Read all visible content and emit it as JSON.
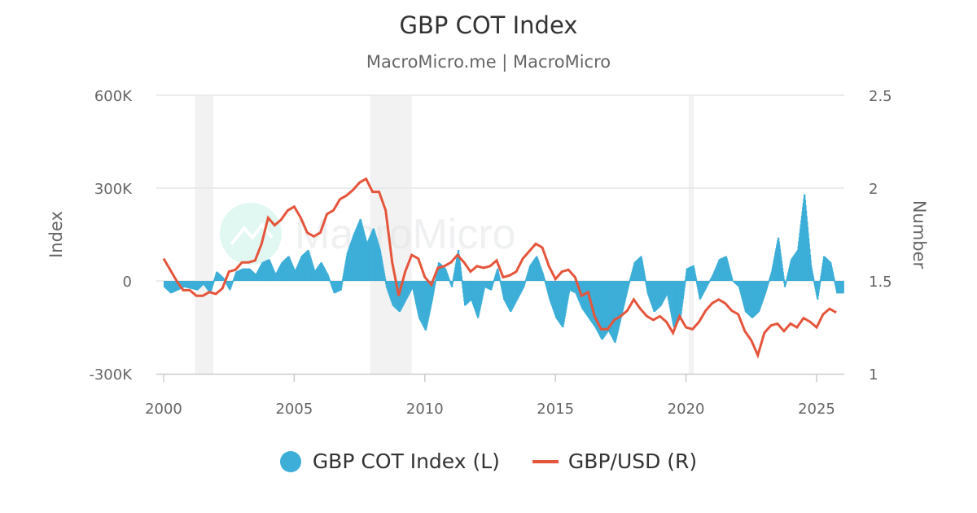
{
  "title": "GBP COT Index",
  "subtitle": "MacroMicro.me | MacroMicro",
  "watermark": "MacroMicro",
  "chart_data": {
    "type": "bar+line",
    "x_axis": {
      "ticks": [
        "2000",
        "2005",
        "2010",
        "2015",
        "2020",
        "2025"
      ],
      "range": [
        1999.72,
        2026.06
      ]
    },
    "y_left": {
      "label": "Index",
      "range": [
        -300000,
        600000
      ],
      "ticks": [
        "-300K",
        "0",
        "300K",
        "600K"
      ],
      "tick_values": [
        -300000,
        0,
        300000,
        600000
      ]
    },
    "y_right": {
      "label": "Number",
      "range": [
        1,
        2.5
      ],
      "ticks": [
        "1",
        "1.5",
        "2",
        "2.5"
      ],
      "tick_values": [
        1,
        1.5,
        2,
        2.5
      ]
    },
    "grid": true,
    "legend_position": "bottom",
    "recession_shading": [
      [
        2001.2,
        2001.9
      ],
      [
        2007.9,
        2009.5
      ],
      [
        2020.1,
        2020.3
      ]
    ],
    "x": [
      2000,
      2000.25,
      2000.5,
      2000.75,
      2001,
      2001.25,
      2001.5,
      2001.75,
      2002,
      2002.25,
      2002.5,
      2002.75,
      2003,
      2003.25,
      2003.5,
      2003.75,
      2004,
      2004.25,
      2004.5,
      2004.75,
      2005,
      2005.25,
      2005.5,
      2005.75,
      2006,
      2006.25,
      2006.5,
      2006.75,
      2007,
      2007.25,
      2007.5,
      2007.75,
      2008,
      2008.25,
      2008.5,
      2008.75,
      2009,
      2009.25,
      2009.5,
      2009.75,
      2010,
      2010.25,
      2010.5,
      2010.75,
      2011,
      2011.25,
      2011.5,
      2011.75,
      2012,
      2012.25,
      2012.5,
      2012.75,
      2013,
      2013.25,
      2013.5,
      2013.75,
      2014,
      2014.25,
      2014.5,
      2014.75,
      2015,
      2015.25,
      2015.5,
      2015.75,
      2016,
      2016.25,
      2016.5,
      2016.75,
      2017,
      2017.25,
      2017.5,
      2017.75,
      2018,
      2018.25,
      2018.5,
      2018.75,
      2019,
      2019.25,
      2019.5,
      2019.75,
      2020,
      2020.25,
      2020.5,
      2020.75,
      2021,
      2021.25,
      2021.5,
      2021.75,
      2022,
      2022.25,
      2022.5,
      2022.75,
      2023,
      2023.25,
      2023.5,
      2023.75,
      2024,
      2024.25,
      2024.5,
      2024.75,
      2025,
      2025.25,
      2025.5,
      2025.75
    ],
    "series": [
      {
        "name": "GBP COT Index (L)",
        "axis": "left",
        "type": "bar",
        "color": "#3caed8",
        "values": [
          -20000,
          -40000,
          -30000,
          -20000,
          -25000,
          -30000,
          -10000,
          -40000,
          30000,
          10000,
          -30000,
          30000,
          40000,
          40000,
          20000,
          60000,
          70000,
          20000,
          60000,
          80000,
          30000,
          80000,
          100000,
          30000,
          60000,
          20000,
          -40000,
          -30000,
          90000,
          150000,
          200000,
          120000,
          170000,
          100000,
          -20000,
          -80000,
          -100000,
          -60000,
          -20000,
          -120000,
          -160000,
          -60000,
          60000,
          40000,
          -20000,
          100000,
          -80000,
          -60000,
          -120000,
          -20000,
          -30000,
          40000,
          -60000,
          -100000,
          -60000,
          -20000,
          50000,
          80000,
          20000,
          -60000,
          -120000,
          -150000,
          -30000,
          -40000,
          -90000,
          -120000,
          -150000,
          -190000,
          -160000,
          -200000,
          -110000,
          -20000,
          60000,
          80000,
          -40000,
          -100000,
          -80000,
          -40000,
          -150000,
          -120000,
          40000,
          50000,
          -60000,
          -20000,
          20000,
          70000,
          80000,
          0,
          -20000,
          -100000,
          -120000,
          -100000,
          -40000,
          30000,
          140000,
          -20000,
          70000,
          100000,
          280000,
          50000,
          -60000,
          80000,
          60000,
          -40000
        ]
      },
      {
        "name": "GBP/USD (R)",
        "axis": "right",
        "type": "line",
        "color": "#e5553b",
        "values": [
          1.62,
          1.56,
          1.5,
          1.45,
          1.45,
          1.42,
          1.42,
          1.44,
          1.43,
          1.46,
          1.55,
          1.56,
          1.6,
          1.6,
          1.61,
          1.7,
          1.84,
          1.8,
          1.83,
          1.88,
          1.9,
          1.84,
          1.76,
          1.74,
          1.76,
          1.86,
          1.88,
          1.94,
          1.96,
          1.99,
          2.03,
          2.05,
          1.98,
          1.98,
          1.88,
          1.6,
          1.42,
          1.55,
          1.64,
          1.62,
          1.52,
          1.48,
          1.57,
          1.58,
          1.6,
          1.64,
          1.6,
          1.55,
          1.58,
          1.57,
          1.58,
          1.61,
          1.52,
          1.53,
          1.55,
          1.62,
          1.66,
          1.7,
          1.68,
          1.58,
          1.51,
          1.55,
          1.56,
          1.52,
          1.42,
          1.44,
          1.31,
          1.24,
          1.24,
          1.29,
          1.31,
          1.34,
          1.4,
          1.35,
          1.31,
          1.29,
          1.31,
          1.28,
          1.22,
          1.31,
          1.25,
          1.24,
          1.28,
          1.34,
          1.38,
          1.4,
          1.38,
          1.34,
          1.32,
          1.23,
          1.18,
          1.1,
          1.22,
          1.26,
          1.27,
          1.23,
          1.27,
          1.25,
          1.3,
          1.28,
          1.25,
          1.32,
          1.35,
          1.33
        ]
      }
    ]
  }
}
